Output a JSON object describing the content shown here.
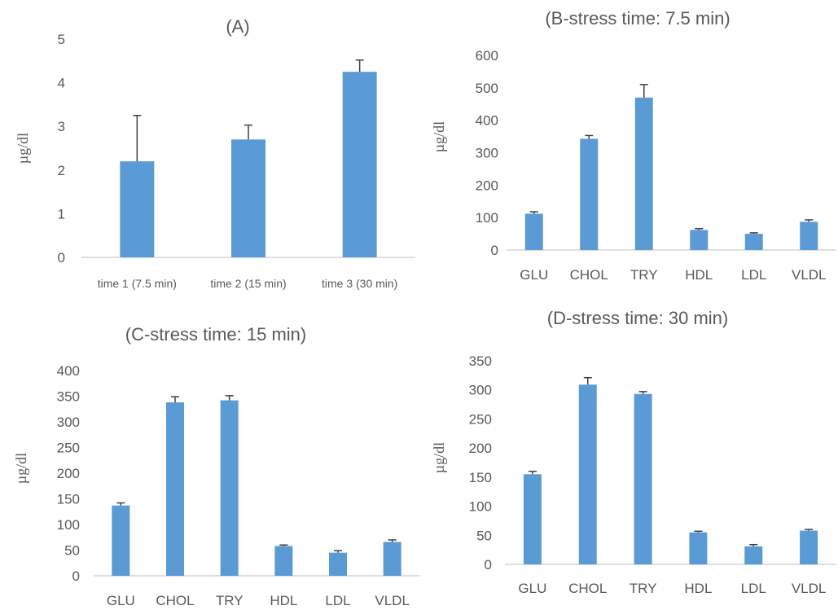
{
  "colors": {
    "bar": "#5b9bd5",
    "error": "#404040",
    "axis": "#bfbfbf",
    "text": "#595959"
  },
  "chart_data": [
    {
      "type": "bar",
      "title": "(A)",
      "ylabel": "µg/dl",
      "ylim": [
        0,
        5
      ],
      "yticks": [
        0,
        1,
        2,
        3,
        4,
        5
      ],
      "categories": [
        "time 1 (7.5 min)",
        "time 2 (15 min)",
        "time 3 (30 min)"
      ],
      "values": [
        2.2,
        2.7,
        4.25
      ],
      "errors": [
        1.05,
        0.33,
        0.27
      ],
      "grid": false
    },
    {
      "type": "bar",
      "title": "(B-stress time: 7.5 min)",
      "ylabel": "µg/dl",
      "ylim": [
        0,
        600
      ],
      "yticks": [
        0,
        100,
        200,
        300,
        400,
        500,
        600
      ],
      "categories": [
        "GLU",
        "CHOL",
        "TRY",
        "HDL",
        "LDL",
        "VLDL"
      ],
      "values": [
        112,
        343,
        470,
        62,
        50,
        87
      ],
      "errors": [
        6,
        10,
        40,
        4,
        3,
        6
      ],
      "grid": false
    },
    {
      "type": "bar",
      "title": "(C-stress time: 15 min)",
      "ylabel": "µg/dl",
      "ylim": [
        0,
        400
      ],
      "yticks": [
        0,
        50,
        100,
        150,
        200,
        250,
        300,
        350,
        400
      ],
      "categories": [
        "GLU",
        "CHOL",
        "TRY",
        "HDL",
        "LDL",
        "VLDL"
      ],
      "values": [
        137,
        338,
        342,
        58,
        45,
        66
      ],
      "errors": [
        5,
        11,
        9,
        2,
        4,
        4
      ],
      "grid": false
    },
    {
      "type": "bar",
      "title": "(D-stress time: 30 min)",
      "ylabel": "µg/dl",
      "ylim": [
        0,
        350
      ],
      "yticks": [
        0,
        50,
        100,
        150,
        200,
        250,
        300,
        350
      ],
      "categories": [
        "GLU",
        "CHOL",
        "TRY",
        "HDL",
        "LDL",
        "VLDL"
      ],
      "values": [
        155,
        309,
        293,
        55,
        31,
        58
      ],
      "errors": [
        5,
        12,
        4,
        2,
        3,
        2
      ],
      "grid": false
    }
  ]
}
